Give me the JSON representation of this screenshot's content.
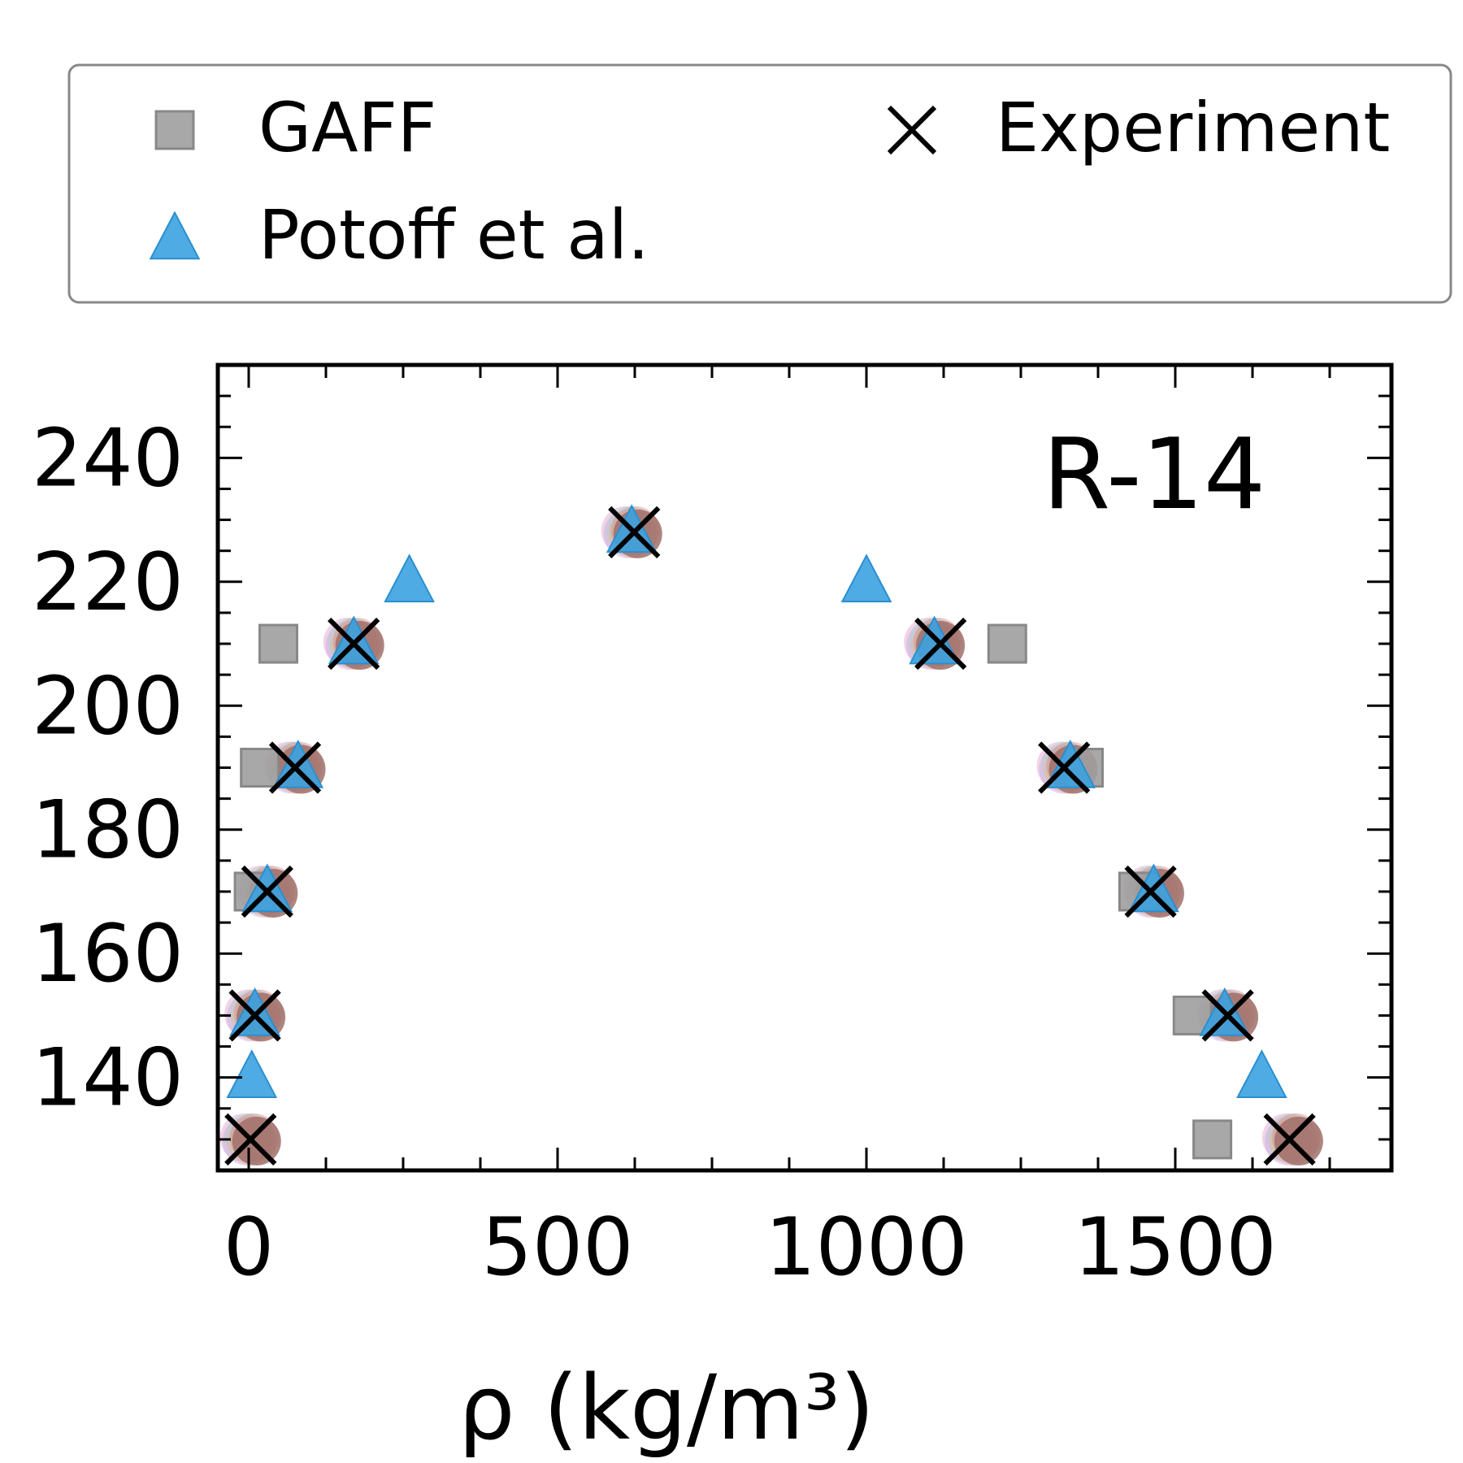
{
  "chart_data": {
    "type": "scatter",
    "annotation": "R-14",
    "xlabel": "ρ (kg/m³)",
    "ylabel": "",
    "xlim": [
      -50,
      1850
    ],
    "ylim": [
      125,
      255
    ],
    "xticks": [
      0,
      500,
      1000,
      1500
    ],
    "yticks": [
      140,
      160,
      180,
      200,
      220,
      240
    ],
    "x_tick_labels": [
      "0",
      "500",
      "1000",
      "1500"
    ],
    "y_tick_labels": [
      "140",
      "160",
      "180",
      "200",
      "220",
      "240"
    ],
    "legend": {
      "placement": "top",
      "entries": [
        "GAFF",
        "Experiment",
        "Potoff et al."
      ]
    },
    "series": [
      {
        "name": "GAFF",
        "marker": "square",
        "color": "#9e9e9e",
        "points": [
          [
            48,
            210
          ],
          [
            1228,
            210
          ],
          [
            18,
            190
          ],
          [
            1352,
            190
          ],
          [
            8,
            170
          ],
          [
            1440,
            170
          ],
          [
            1528,
            150
          ],
          [
            1560,
            130
          ]
        ]
      },
      {
        "name": "Potoff et al.",
        "marker": "triangle",
        "color": "#3ca2e0",
        "points": [
          [
            260,
            220
          ],
          [
            1000,
            220
          ],
          [
            5,
            140
          ],
          [
            1640,
            140
          ],
          [
            620,
            228
          ],
          [
            170,
            210
          ],
          [
            1110,
            210
          ],
          [
            80,
            190
          ],
          [
            1330,
            190
          ],
          [
            30,
            170
          ],
          [
            1465,
            170
          ],
          [
            10,
            150
          ],
          [
            1580,
            150
          ]
        ]
      },
      {
        "name": "Experiment",
        "marker": "x",
        "color": "#000000",
        "points": [
          [
            624,
            228
          ],
          [
            170,
            210
          ],
          [
            1120,
            210
          ],
          [
            75,
            190
          ],
          [
            1320,
            190
          ],
          [
            30,
            170
          ],
          [
            1460,
            170
          ],
          [
            10,
            150
          ],
          [
            1585,
            150
          ],
          [
            3,
            130
          ],
          [
            1685,
            130
          ]
        ]
      }
    ],
    "other_models_circles": {
      "color": "#a0706a",
      "points": [
        [
          620,
          228
        ],
        [
          170,
          210
        ],
        [
          1110,
          210
        ],
        [
          75,
          190
        ],
        [
          1325,
          190
        ],
        [
          30,
          170
        ],
        [
          1465,
          170
        ],
        [
          10,
          150
        ],
        [
          1585,
          150
        ],
        [
          3,
          130
        ],
        [
          1690,
          130
        ]
      ]
    }
  }
}
